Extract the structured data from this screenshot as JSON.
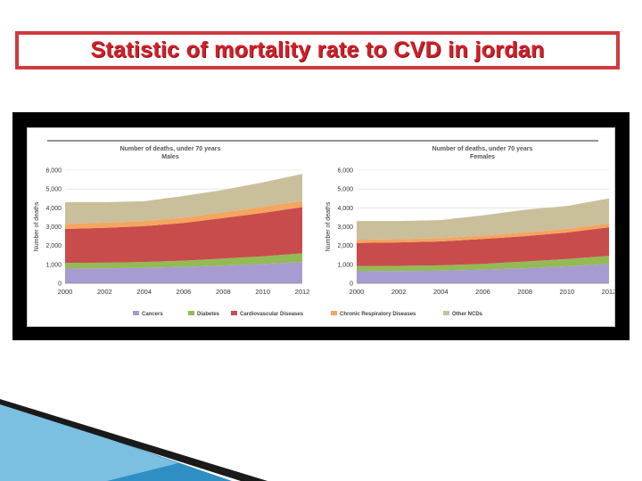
{
  "page_title": "Statistic of  mortality rate to CVD in jordan",
  "colors": {
    "title": "#d0202a",
    "title_border": "#d03a40",
    "Cancers": "#a89bd1",
    "Diabetes": "#93ba55",
    "Cardiovascular Diseases": "#c94c4c",
    "Chronic Respiratory Diseases": "#f4a55e",
    "Other NCDs": "#c9bf9b"
  },
  "chart_data": [
    {
      "type": "area",
      "stacked": true,
      "title": "Number of deaths, under 70 years",
      "subtitle": "Males",
      "ylabel": "Number of deaths",
      "xlabel": "",
      "ylim": [
        0,
        6000
      ],
      "y_ticks": [
        "0",
        "1,000",
        "2,000",
        "3,000",
        "4,000",
        "5,000",
        "6,000"
      ],
      "x": [
        2000,
        2002,
        2004,
        2006,
        2008,
        2010,
        2012
      ],
      "x_ticks": [
        "2000",
        "2002",
        "2004",
        "2006",
        "2008",
        "2010",
        "2012"
      ],
      "grid": true,
      "legend": "bottom",
      "series": [
        {
          "name": "Cancers",
          "values": [
            780,
            790,
            820,
            870,
            940,
            1020,
            1120
          ]
        },
        {
          "name": "Diabetes",
          "values": [
            300,
            300,
            310,
            330,
            370,
            410,
            470
          ]
        },
        {
          "name": "Cardiovascular Diseases",
          "values": [
            1800,
            1850,
            1900,
            2000,
            2150,
            2300,
            2450
          ]
        },
        {
          "name": "Chronic Respiratory Diseases",
          "values": [
            270,
            270,
            270,
            280,
            300,
            320,
            330
          ]
        },
        {
          "name": "Other NCDs",
          "values": [
            1150,
            1090,
            1050,
            1150,
            1190,
            1300,
            1430
          ]
        }
      ]
    },
    {
      "type": "area",
      "stacked": true,
      "title": "Number of deaths, under 70 years",
      "subtitle": "Females",
      "ylabel": "Number of deaths",
      "xlabel": "",
      "ylim": [
        0,
        6000
      ],
      "y_ticks": [
        "0",
        "1,000",
        "2,000",
        "3,000",
        "4,000",
        "5,000",
        "6,000"
      ],
      "x": [
        2000,
        2002,
        2004,
        2006,
        2008,
        2010,
        2012
      ],
      "x_ticks": [
        "2000",
        "2002",
        "2004",
        "2006",
        "2008",
        "2010",
        "2012"
      ],
      "grid": true,
      "legend": "bottom",
      "series": [
        {
          "name": "Cancers",
          "values": [
            640,
            650,
            670,
            720,
            800,
            900,
            1020
          ]
        },
        {
          "name": "Diabetes",
          "values": [
            270,
            270,
            280,
            310,
            350,
            390,
            430
          ]
        },
        {
          "name": "Cardiovascular Diseases",
          "values": [
            1230,
            1250,
            1270,
            1320,
            1350,
            1400,
            1520
          ]
        },
        {
          "name": "Chronic Respiratory Diseases",
          "values": [
            170,
            170,
            170,
            180,
            190,
            200,
            210
          ]
        },
        {
          "name": "Other NCDs",
          "values": [
            990,
            960,
            960,
            1070,
            1210,
            1210,
            1320
          ]
        }
      ]
    }
  ],
  "legend": {
    "items": [
      "Cancers",
      "Diabetes",
      "Cardiovascular Diseases",
      "Chronic Respiratory Diseases",
      "Other NCDs"
    ]
  }
}
